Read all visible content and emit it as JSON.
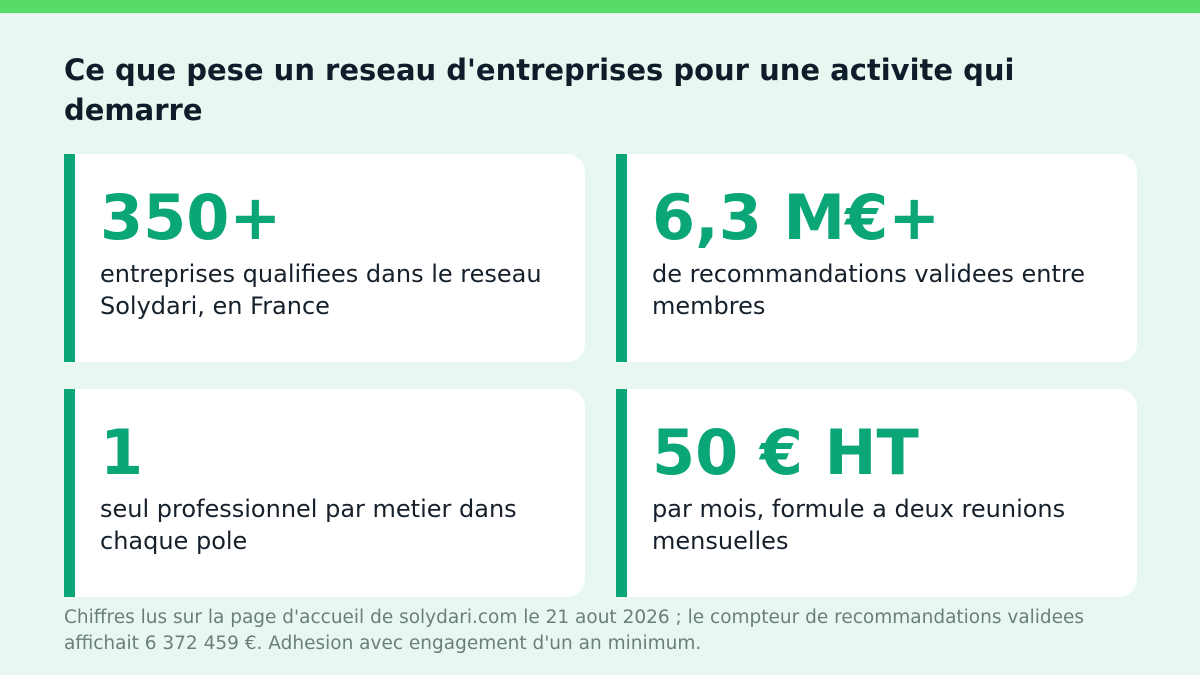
{
  "colors": {
    "background": "#e8f8f1",
    "top_bar": "#59dc66",
    "accent": "#0aa677",
    "title_text": "#0f1d2b",
    "card_background": "#ffffff",
    "footnote_text": "#6b7e79"
  },
  "title": "Ce que pese un reseau d'entreprises pour une activite qui demarre",
  "cards": [
    {
      "value": "350+",
      "description": "entreprises qualifiees dans le reseau Solydari, en France"
    },
    {
      "value": "6,3 M€+",
      "description": "de recommandations validees entre membres"
    },
    {
      "value": "1",
      "description": "seul professionnel par metier dans chaque pole"
    },
    {
      "value": "50 € HT",
      "description": "par mois, formule a deux reunions mensuelles"
    }
  ],
  "footnote": "Chiffres lus sur la page d'accueil de solydari.com le 21 aout 2026 ; le compteur de recommandations validees affichait 6 372 459 €. Adhesion avec engagement d'un an minimum."
}
